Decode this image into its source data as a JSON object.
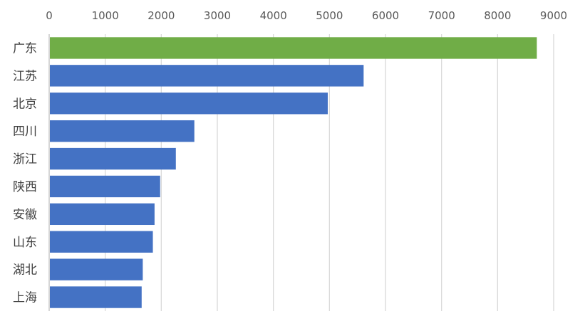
{
  "chart_data": {
    "type": "bar",
    "orientation": "horizontal",
    "title": "",
    "xlabel": "",
    "ylabel": "",
    "categories": [
      "广东",
      "江苏",
      "北京",
      "四川",
      "浙江",
      "陕西",
      "安徽",
      "山东",
      "湖北",
      "上海"
    ],
    "values": [
      8700,
      5610,
      4970,
      2590,
      2260,
      1980,
      1880,
      1850,
      1670,
      1650
    ],
    "xlim": [
      0,
      9000
    ],
    "xticks": [
      0,
      1000,
      2000,
      3000,
      4000,
      5000,
      6000,
      7000,
      8000,
      9000
    ],
    "x_axis_position": "top",
    "grid": true,
    "legend": "none",
    "colors": {
      "highlight": "#70ad47",
      "default": "#4472c4",
      "grid": "#d9d9d9"
    },
    "highlight_category": "广东"
  }
}
